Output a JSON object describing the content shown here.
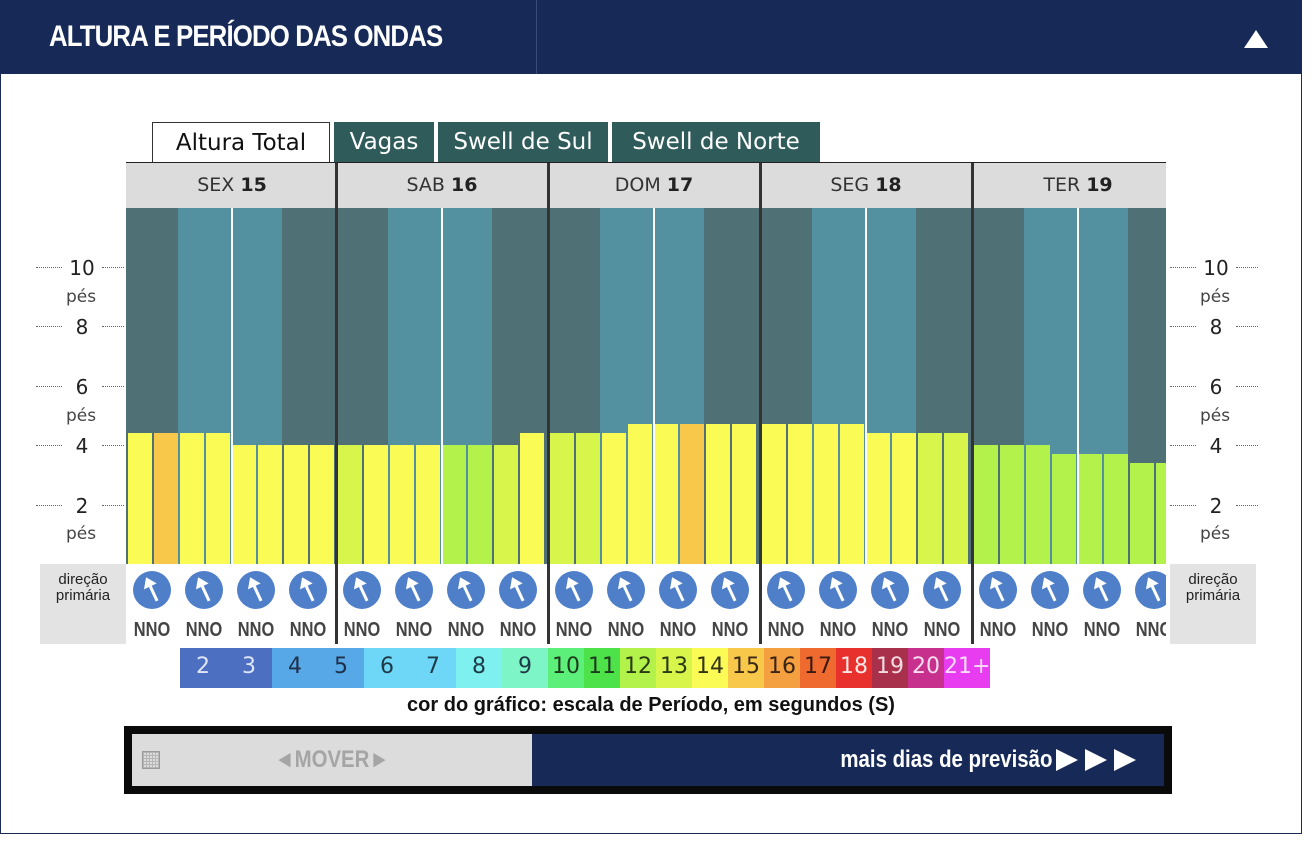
{
  "header": {
    "title": "ALTURA E PERÍODO DAS ONDAS"
  },
  "tabs": [
    {
      "label": "Altura Total",
      "active": true
    },
    {
      "label": "Vagas",
      "active": false
    },
    {
      "label": "Swell de Sul",
      "active": false
    },
    {
      "label": "Swell de Norte",
      "active": false
    }
  ],
  "days": [
    {
      "weekday": "SEX",
      "date": "15"
    },
    {
      "weekday": "SAB",
      "date": "16"
    },
    {
      "weekday": "DOM",
      "date": "17"
    },
    {
      "weekday": "SEG",
      "date": "18"
    },
    {
      "weekday": "TER",
      "date": "19"
    }
  ],
  "axis": {
    "unit": "pés",
    "ticks": [
      "10",
      "8",
      "6",
      "4",
      "2"
    ]
  },
  "direction_label": "direção primária",
  "chart_data": {
    "type": "bar",
    "ylabel": "pés",
    "ylim": [
      0,
      12
    ],
    "y_ticks": [
      2,
      4,
      6,
      8,
      10
    ],
    "value_meaning": "wave height (pés), two bars per time slot, 4 slots per day",
    "heights": [
      4.4,
      4.4,
      4.4,
      4.4,
      4.0,
      4.0,
      4.0,
      4.0,
      4.0,
      4.0,
      4.0,
      4.0,
      4.0,
      4.0,
      4.0,
      4.4,
      4.4,
      4.4,
      4.4,
      4.7,
      4.7,
      4.7,
      4.7,
      4.7,
      4.7,
      4.7,
      4.7,
      4.7,
      4.4,
      4.4,
      4.4,
      4.4,
      4.0,
      4.0,
      4.0,
      3.7,
      3.7,
      3.7,
      3.4,
      3.4
    ],
    "periods": [
      14,
      15,
      14,
      14,
      14,
      14,
      14,
      14,
      13,
      14,
      14,
      14,
      12,
      12,
      13,
      14,
      13,
      13,
      14,
      14,
      14,
      15,
      14,
      14,
      14,
      14,
      14,
      14,
      14,
      14,
      13,
      13,
      12,
      12,
      12,
      12,
      12,
      12,
      12,
      12
    ],
    "directions": [
      "NNO",
      "NNO",
      "NNO",
      "NNO",
      "NNO",
      "NNO",
      "NNO",
      "NNO",
      "NNO",
      "NNO",
      "NNO",
      "NNO",
      "NNO",
      "NNO",
      "NNO",
      "NNO",
      "NNO",
      "NNO",
      "NNO",
      "NNO"
    ]
  },
  "period_scale": {
    "cells": [
      {
        "label": "2",
        "color": "#4c6fc2",
        "text": "#dfe6f7"
      },
      {
        "label": "3",
        "color": "#4c6fc2",
        "text": "#dfe6f7"
      },
      {
        "label": "4",
        "color": "#57a8e6",
        "text": "#1e2f4a"
      },
      {
        "label": "5",
        "color": "#57a8e6",
        "text": "#1e2f4a"
      },
      {
        "label": "6",
        "color": "#6ed6f7",
        "text": "#1e3a46"
      },
      {
        "label": "7",
        "color": "#6ed6f7",
        "text": "#1e3a46"
      },
      {
        "label": "8",
        "color": "#7ef0f0",
        "text": "#1e3a46"
      },
      {
        "label": "9",
        "color": "#7ef5c6",
        "text": "#1e3a46"
      },
      {
        "label": "10",
        "color": "#5cf07a",
        "text": "#1e3a1e"
      },
      {
        "label": "11",
        "color": "#4ee24a",
        "text": "#1e3a1e"
      },
      {
        "label": "12",
        "color": "#b2f24a",
        "text": "#2a3a14"
      },
      {
        "label": "13",
        "color": "#d7f54a",
        "text": "#2a3a14"
      },
      {
        "label": "14",
        "color": "#fbfb55",
        "text": "#333314"
      },
      {
        "label": "15",
        "color": "#f8c84a",
        "text": "#3a2a14"
      },
      {
        "label": "16",
        "color": "#f4a040",
        "text": "#3a2414"
      },
      {
        "label": "17",
        "color": "#ef6a2e",
        "text": "#3a1a10"
      },
      {
        "label": "18",
        "color": "#e8302c",
        "text": "#ffe6e6"
      },
      {
        "label": "19",
        "color": "#a8304a",
        "text": "#f4dbe2"
      },
      {
        "label": "20",
        "color": "#c8308e",
        "text": "#f8ddef"
      },
      {
        "label": "21+",
        "color": "#e83cf0",
        "text": "#fbdcfd"
      }
    ],
    "caption": "cor do gráfico: escala de Período, em segundos (S)"
  },
  "bottom": {
    "mover_label": "◄MOVER►",
    "more_days_label": "mais dias de previsão"
  },
  "colors": {
    "header_bg": "#172a57",
    "chart_bg_dark": "#4f7176",
    "chart_bg_light": "#5491a0",
    "tab_inactive": "#2f5b5a",
    "arrow_circle": "#4f7fc9"
  }
}
